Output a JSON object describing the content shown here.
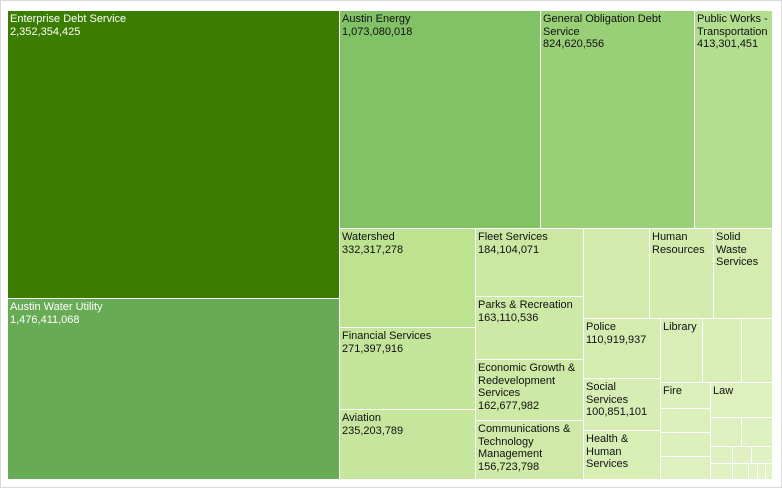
{
  "chart_data": {
    "type": "treemap",
    "items": [
      {
        "name": "Enterprise Debt Service",
        "value_label": "2,352,354,425",
        "value": 2352354425,
        "color": "#3a7d00",
        "text_color": "#ffffff"
      },
      {
        "name": "Austin Water Utility",
        "value_label": "1,476,411,068",
        "value": 1476411068,
        "color": "#68ab55",
        "text_color": "#ffffff"
      },
      {
        "name": "Austin Energy",
        "value_label": "1,073,080,018",
        "value": 1073080018,
        "color": "#82c266",
        "text_color": "#111111"
      },
      {
        "name": "General Obligation Debt Service",
        "value_label": "824,620,556",
        "value": 824620556,
        "color": "#98cf77",
        "text_color": "#111111"
      },
      {
        "name": "Public Works - Transportation",
        "value_label": "413,301,451",
        "value": 413301451,
        "color": "#b4de8f",
        "text_color": "#111111"
      },
      {
        "name": "Watershed",
        "value_label": "332,317,278",
        "value": 332317278,
        "color": "#bde391",
        "text_color": "#111111"
      },
      {
        "name": "Financial Services",
        "value_label": "271,397,916",
        "value": 271397916,
        "color": "#c3e69a",
        "text_color": "#111111"
      },
      {
        "name": "Aviation",
        "value_label": "235,203,789",
        "value": 235203789,
        "color": "#c6e69e",
        "text_color": "#111111"
      },
      {
        "name": "Fleet Services",
        "value_label": "184,104,071",
        "value": 184104071,
        "color": "#cbe8a3",
        "text_color": "#111111"
      },
      {
        "name": "Parks & Recreation",
        "value_label": "163,110,536",
        "value": 163110536,
        "color": "#cde9a6",
        "text_color": "#111111"
      },
      {
        "name": "Economic Growth & Redevelopment Services",
        "value_label": "162,677,982",
        "value": 162677982,
        "color": "#cde9a6",
        "text_color": "#111111"
      },
      {
        "name": "Communications & Technology Management",
        "value_label": "156,723,798",
        "value": 156723798,
        "color": "#cfeaa8",
        "text_color": "#111111"
      },
      {
        "name": "",
        "value_label": "",
        "value": 150000000,
        "color": "#d2ebad",
        "text_color": "#111111"
      },
      {
        "name": "Human Resources",
        "value_label": "",
        "value": 140000000,
        "color": "#d3ecae",
        "text_color": "#111111"
      },
      {
        "name": "Solid Waste Services",
        "value_label": "",
        "value": 135000000,
        "color": "#d4ecb0",
        "text_color": "#111111"
      },
      {
        "name": "Police",
        "value_label": "110,919,937",
        "value": 110919937,
        "color": "#d4ecb0",
        "text_color": "#111111"
      },
      {
        "name": "Social Services",
        "value_label": "100,851,101",
        "value": 100851101,
        "color": "#d6edb3",
        "text_color": "#111111"
      },
      {
        "name": "Health & Human Services",
        "value_label": "",
        "value": 95000000,
        "color": "#d7eeb4",
        "text_color": "#111111"
      },
      {
        "name": "Library",
        "value_label": "",
        "value": 70000000,
        "color": "#d9eeb6",
        "text_color": "#111111"
      },
      {
        "name": "",
        "value_label": "",
        "value": 55000000,
        "color": "#daefb8",
        "text_color": "#111111"
      },
      {
        "name": "",
        "value_label": "",
        "value": 45000000,
        "color": "#dbefba",
        "text_color": "#111111"
      },
      {
        "name": "Fire",
        "value_label": "",
        "value": 40000000,
        "color": "#dbefba",
        "text_color": "#111111"
      },
      {
        "name": "",
        "value_label": "",
        "value": 20000000,
        "color": "#dcf0bb",
        "text_color": "#111111"
      },
      {
        "name": "",
        "value_label": "",
        "value": 18000000,
        "color": "#dcf0bb",
        "text_color": "#111111"
      },
      {
        "name": "",
        "value_label": "",
        "value": 17000000,
        "color": "#ddf0bd",
        "text_color": "#111111"
      },
      {
        "name": "Law",
        "value_label": "",
        "value": 30000000,
        "color": "#ddf0bd",
        "text_color": "#111111"
      },
      {
        "name": "",
        "value_label": "",
        "value": 22000000,
        "color": "#def0bf",
        "text_color": "#111111"
      },
      {
        "name": "",
        "value_label": "",
        "value": 12000000,
        "color": "#def1c0",
        "text_color": "#111111"
      },
      {
        "name": "",
        "value_label": "",
        "value": 10000000,
        "color": "#dff1c1",
        "text_color": "#111111"
      },
      {
        "name": "",
        "value_label": "",
        "value": 9000000,
        "color": "#dff1c1",
        "text_color": "#111111"
      },
      {
        "name": "",
        "value_label": "",
        "value": 8000000,
        "color": "#e0f1c3",
        "text_color": "#111111"
      },
      {
        "name": "",
        "value_label": "",
        "value": 7000000,
        "color": "#e0f1c3",
        "text_color": "#111111"
      },
      {
        "name": "",
        "value_label": "",
        "value": 6000000,
        "color": "#e0f2c4",
        "text_color": "#111111"
      },
      {
        "name": "",
        "value_label": "",
        "value": 5000000,
        "color": "#e1f2c5",
        "text_color": "#111111"
      },
      {
        "name": "",
        "value_label": "",
        "value": 4000000,
        "color": "#e1f2c5",
        "text_color": "#111111"
      },
      {
        "name": "",
        "value_label": "",
        "value": 3000000,
        "color": "#e2f2c7",
        "text_color": "#111111"
      }
    ]
  }
}
